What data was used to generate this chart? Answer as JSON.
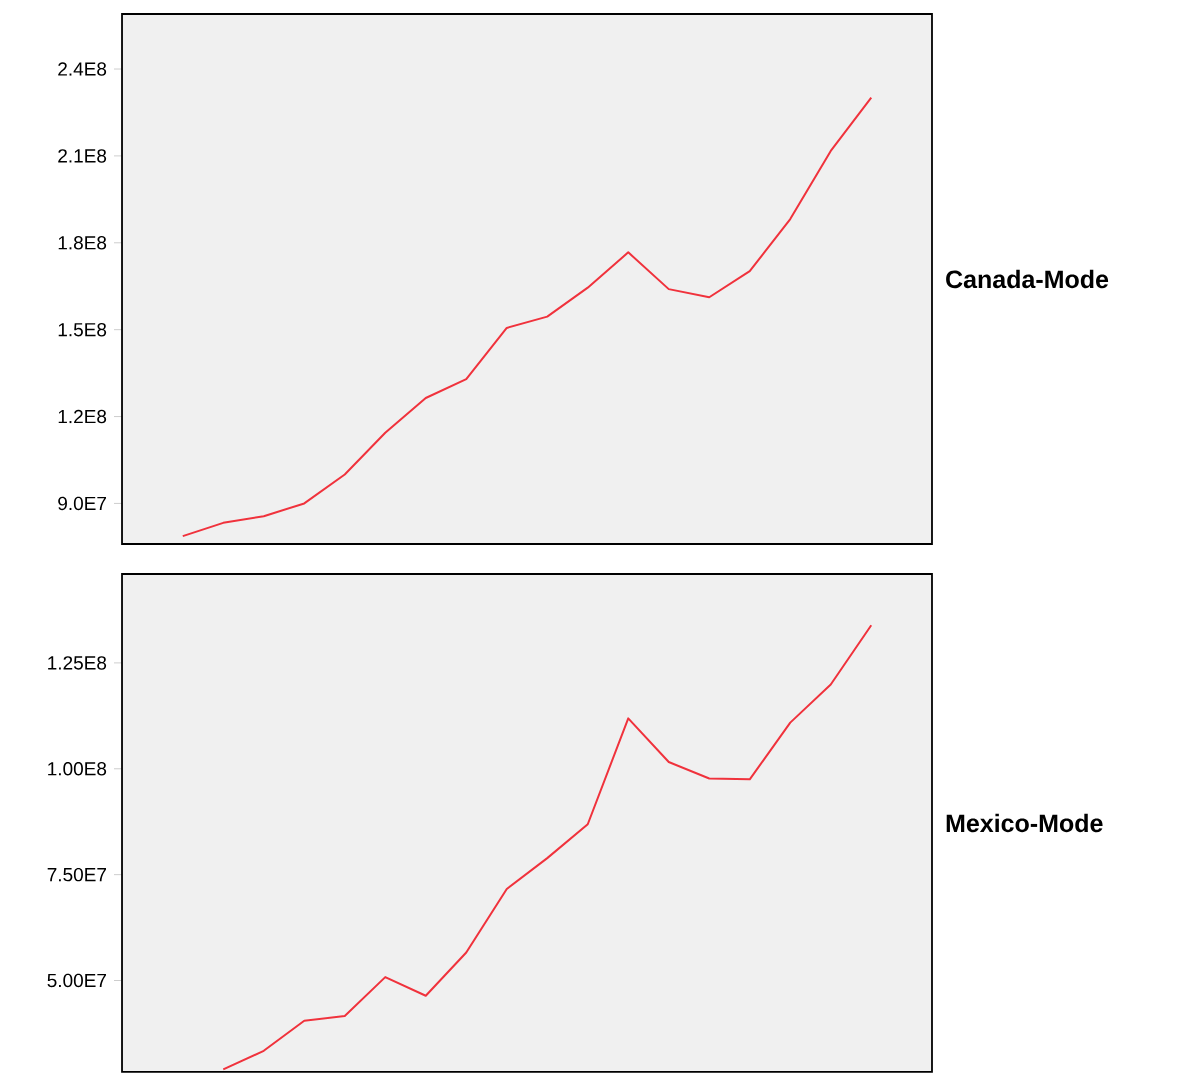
{
  "chart_data": [
    {
      "type": "line",
      "ylabel": "Canada-Mode",
      "categories": [
        null,
        null,
        null,
        null,
        null,
        null,
        null,
        null,
        null,
        null,
        null,
        null,
        null,
        null,
        null,
        null,
        null,
        null
      ],
      "series": [
        {
          "color": "#f0323c",
          "values": [
            78700000,
            83300000,
            85600000,
            90000000,
            100000000,
            114400000,
            126400000,
            132900000,
            150600000,
            154500000,
            164500000,
            176700000,
            164000000,
            161200000,
            170200000,
            188200000,
            211700000,
            230100000
          ]
        }
      ],
      "ylim": [
        76000000,
        259000000
      ],
      "yticks": [
        {
          "value": 90000000,
          "label": "9.0E7"
        },
        {
          "value": 120000000,
          "label": "1.2E8"
        },
        {
          "value": 150000000,
          "label": "1.5E8"
        },
        {
          "value": 180000000,
          "label": "1.8E8"
        },
        {
          "value": 210000000,
          "label": "2.1E8"
        },
        {
          "value": 240000000,
          "label": "2.4E8"
        }
      ],
      "tick_labels": "y"
    },
    {
      "type": "line",
      "ylabel": "Mexico-Mode",
      "categories": [
        null,
        null,
        null,
        null,
        null,
        null,
        null,
        null,
        null,
        null,
        null,
        null,
        null,
        null,
        null,
        null,
        null,
        null
      ],
      "series": [
        {
          "color": "#f0323c",
          "values": [
            null,
            29000000,
            33400000,
            40500000,
            41600000,
            50800000,
            46400000,
            56600000,
            71600000,
            78900000,
            86900000,
            111900000,
            101600000,
            97700000,
            97500000,
            110900000,
            119900000,
            133900000
          ]
        }
      ],
      "ylim": [
        28400000,
        146000000
      ],
      "yticks": [
        {
          "value": 50000000,
          "label": "5.00E7"
        },
        {
          "value": 75000000,
          "label": "7.50E7"
        },
        {
          "value": 100000000,
          "label": "1.00E8"
        },
        {
          "value": 125000000,
          "label": "1.25E8"
        }
      ],
      "tick_labels": "y"
    }
  ]
}
